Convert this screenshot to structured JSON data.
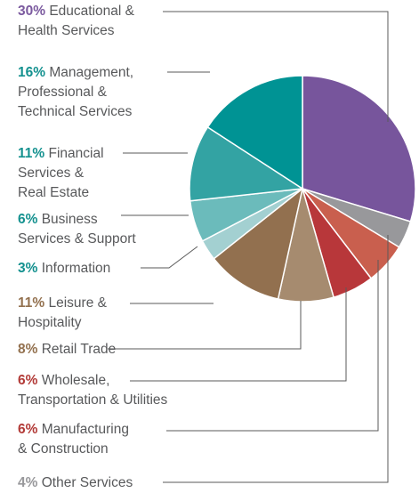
{
  "chart_data": {
    "type": "pie",
    "title": "",
    "slices": [
      {
        "percent_label": "30%",
        "value": 30,
        "label_lines": [
          "Educational &",
          "Health Services"
        ],
        "color": "#77559c"
      },
      {
        "percent_label": "4%",
        "value": 4,
        "label_lines": [
          "Other Services"
        ],
        "color": "#98989b"
      },
      {
        "percent_label": "6%",
        "value": 6,
        "label_lines": [
          "Manufacturing",
          "& Construction"
        ],
        "color": "#c95f4e"
      },
      {
        "percent_label": "6%",
        "value": 6,
        "label_lines": [
          "Wholesale,",
          "Transportation & Utilities"
        ],
        "color": "#b8373a"
      },
      {
        "percent_label": "8%",
        "value": 8,
        "label_lines": [
          "Retail Trade"
        ],
        "color": "#a68b6f"
      },
      {
        "percent_label": "11%",
        "value": 11,
        "label_lines": [
          "Leisure &",
          "Hospitality"
        ],
        "color": "#92704f"
      },
      {
        "percent_label": "3%",
        "value": 3,
        "label_lines": [
          "Information"
        ],
        "color": "#a3d0d1"
      },
      {
        "percent_label": "6%",
        "value": 6,
        "label_lines": [
          "Business",
          "Services & Support"
        ],
        "color": "#6bbbbb"
      },
      {
        "percent_label": "11%",
        "value": 11,
        "label_lines": [
          "Financial",
          "Services &",
          "Real Estate"
        ],
        "color": "#33a3a3"
      },
      {
        "percent_label": "16%",
        "value": 16,
        "label_lines": [
          "Management,",
          "Professional &",
          "Technical Services"
        ],
        "color": "#009394"
      }
    ],
    "percent_label_colors": {
      "purple": "#7b5a9f",
      "teal": "#14918f",
      "brown": "#93714f",
      "red": "#b23a37",
      "gray": "#98989b"
    }
  }
}
